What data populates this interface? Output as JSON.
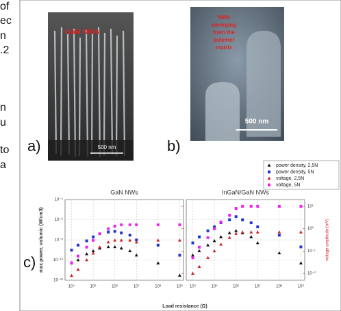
{
  "text_fragments": [
    "of",
    "ec",
    "n",
    ".2",
    "n",
    "u",
    "to",
    "a"
  ],
  "figure": {
    "panel_a": {
      "label": "a)",
      "title": "GaN NWs",
      "scale": "500 nm"
    },
    "panel_b": {
      "label": "b)",
      "caption_lines": [
        "NWs",
        "emerging",
        "from the",
        "polymer",
        "matrix"
      ],
      "scale": "500 nm"
    },
    "panel_c": {
      "label": "c)"
    }
  },
  "chart_data": [
    {
      "type": "scatter",
      "title": "GaN NWs",
      "x_label": "Load resistance (Ω)",
      "y_label": "max power, volumic (W/cm3)",
      "log_x": true,
      "log_y": true,
      "grid": true,
      "legend": "top-right",
      "xlim": [
        5000,
        1500000000
      ],
      "ylim": [
        1e-12,
        0.0001
      ],
      "y2lim": [
        0.005,
        20
      ],
      "xticks": [
        {
          "value": 10000,
          "label": "10⁴"
        },
        {
          "value": 100000,
          "label": "10⁵"
        },
        {
          "value": 1000000,
          "label": "10⁶"
        },
        {
          "value": 10000000,
          "label": "10⁷"
        },
        {
          "value": 100000000,
          "label": "10⁸"
        },
        {
          "value": 1000000000,
          "label": "10⁹"
        }
      ],
      "yticks": [
        {
          "value": 1e-12,
          "label": "10⁻¹²"
        },
        {
          "value": 1e-10,
          "label": "10⁻¹⁰"
        },
        {
          "value": 1e-08,
          "label": "10⁻⁸"
        },
        {
          "value": 1e-06,
          "label": "10⁻⁶"
        },
        {
          "value": 0.0001,
          "label": "10⁻⁴"
        }
      ],
      "y2ticks": [
        {
          "value": 0.01,
          "label": "10⁻²"
        },
        {
          "value": 0.1,
          "label": "10⁻¹"
        },
        {
          "value": 1,
          "label": "10⁰"
        },
        {
          "value": 10,
          "label": "10¹"
        }
      ],
      "x": [
        10000,
        20000,
        50000,
        100000,
        200000,
        500000,
        1000000,
        2000000,
        5000000,
        10000000,
        100000000,
        1000000000
      ],
      "series": [
        {
          "name": "power density, 2,5N",
          "color": "#111111",
          "marker": "triangle",
          "values": [
            5e-11,
            1e-10,
            4e-10,
            8e-10,
            1.5e-09,
            2e-09,
            2e-09,
            1.5e-09,
            8e-10,
            3e-10,
            5e-11,
            3e-12
          ]
        },
        {
          "name": "power density, 5N",
          "color": "#2233cc",
          "marker": "square",
          "values": [
            1e-09,
            3e-09,
            8e-09,
            2e-08,
            4e-08,
            6e-08,
            7e-08,
            5e-08,
            3e-08,
            1e-08,
            3e-09,
            3e-10
          ]
        },
        {
          "name": "voltage, 2,5N",
          "color": "#cc2222",
          "marker": "triangle",
          "axis": "y2",
          "values": [
            0.008,
            0.015,
            0.04,
            0.08,
            0.15,
            0.25,
            0.3,
            0.3,
            0.3,
            0.25,
            0.3,
            0.3
          ]
        },
        {
          "name": "voltage, 5N",
          "color": "#ee22ee",
          "marker": "square",
          "axis": "y2",
          "values": [
            0.03,
            0.06,
            0.15,
            0.3,
            0.6,
            1,
            1.3,
            1.5,
            1.5,
            1.5,
            1.5,
            1.5
          ]
        }
      ]
    },
    {
      "type": "scatter",
      "title": "InGaN/GaN NWs",
      "y2_label": "voltage amplitude (mV)",
      "log_x": true,
      "log_y": true,
      "grid": true,
      "xlim": [
        5000,
        1500000000
      ],
      "ylim": [
        1e-12,
        0.0001
      ],
      "y2lim": [
        0.005,
        20
      ],
      "xticks": [
        {
          "value": 10000,
          "label": "10⁴"
        },
        {
          "value": 100000,
          "label": "10⁵"
        },
        {
          "value": 1000000,
          "label": "10⁶"
        },
        {
          "value": 10000000,
          "label": "10⁷"
        },
        {
          "value": 100000000,
          "label": "10⁸"
        },
        {
          "value": 1000000000,
          "label": "10⁹"
        }
      ],
      "yticks": [
        {
          "value": 1e-12,
          "label": "10⁻¹²"
        },
        {
          "value": 1e-10,
          "label": "10⁻¹⁰"
        },
        {
          "value": 1e-08,
          "label": "10⁻⁸"
        },
        {
          "value": 1e-06,
          "label": "10⁻⁶"
        },
        {
          "value": 0.0001,
          "label": "10⁻⁴"
        }
      ],
      "y2ticks": [
        {
          "value": 0.01,
          "label": "10⁻²"
        },
        {
          "value": 0.1,
          "label": "10⁻¹"
        },
        {
          "value": 1,
          "label": "10⁰"
        },
        {
          "value": 10,
          "label": "10¹"
        }
      ],
      "x": [
        10000,
        20000,
        50000,
        100000,
        200000,
        500000,
        1000000,
        2000000,
        5000000,
        10000000,
        100000000,
        1000000000
      ],
      "series": [
        {
          "name": "power density, 2,5N",
          "color": "#111111",
          "marker": "triangle",
          "values": [
            3e-10,
            8e-10,
            3e-09,
            8e-09,
            2e-08,
            5e-08,
            8e-08,
            5e-08,
            2e-08,
            5e-09,
            5e-10,
            5e-11
          ]
        },
        {
          "name": "power density, 5N",
          "color": "#2233cc",
          "marker": "square",
          "values": [
            5e-09,
            2e-08,
            8e-08,
            2e-07,
            5e-07,
            1e-06,
            2e-06,
            1e-06,
            5e-07,
            2e-07,
            3e-08,
            2e-09
          ]
        },
        {
          "name": "voltage, 2,5N",
          "color": "#cc2222",
          "marker": "triangle",
          "axis": "y2",
          "values": [
            0.01,
            0.02,
            0.05,
            0.1,
            0.2,
            0.4,
            0.6,
            0.7,
            0.7,
            0.7,
            0.7,
            0.7
          ]
        },
        {
          "name": "voltage, 5N",
          "color": "#ee22ee",
          "marker": "square",
          "axis": "y2",
          "values": [
            0.05,
            0.15,
            0.4,
            1,
            2,
            4,
            8,
            10,
            10,
            10,
            10,
            10
          ]
        }
      ]
    }
  ]
}
